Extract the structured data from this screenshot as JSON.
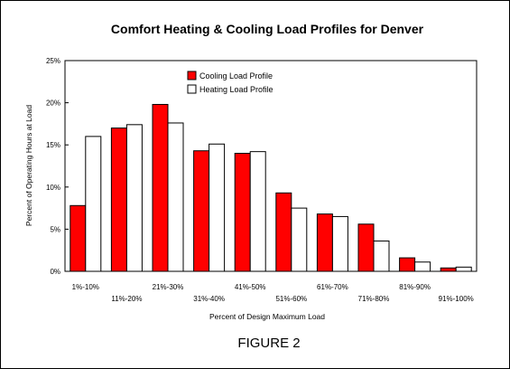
{
  "chart_data": {
    "type": "bar",
    "title": "Comfort Heating & Cooling Load Profiles for Denver",
    "xlabel": "Percent of Design Maximum Load",
    "ylabel": "Percent of Operating Hours at Load",
    "ylim": [
      0,
      25
    ],
    "yticks": [
      "0%",
      "5%",
      "10%",
      "15%",
      "20%",
      "25%"
    ],
    "grid": false,
    "legend_position": "top-center",
    "categories": [
      "1%-10%",
      "11%-20%",
      "21%-30%",
      "31%-40%",
      "41%-50%",
      "51%-60%",
      "61%-70%",
      "71%-80%",
      "81%-90%",
      "91%-100%"
    ],
    "series": [
      {
        "name": "Cooling Load Profile",
        "color": "#ff0000",
        "values": [
          7.8,
          17.0,
          19.8,
          14.3,
          14.0,
          9.3,
          6.8,
          5.6,
          1.6,
          0.4
        ]
      },
      {
        "name": "Heating Load Profile",
        "color": "#ffffff",
        "values": [
          16.0,
          17.4,
          17.6,
          15.1,
          14.2,
          7.5,
          6.5,
          3.6,
          1.1,
          0.5
        ]
      }
    ],
    "caption": "FIGURE 2"
  }
}
